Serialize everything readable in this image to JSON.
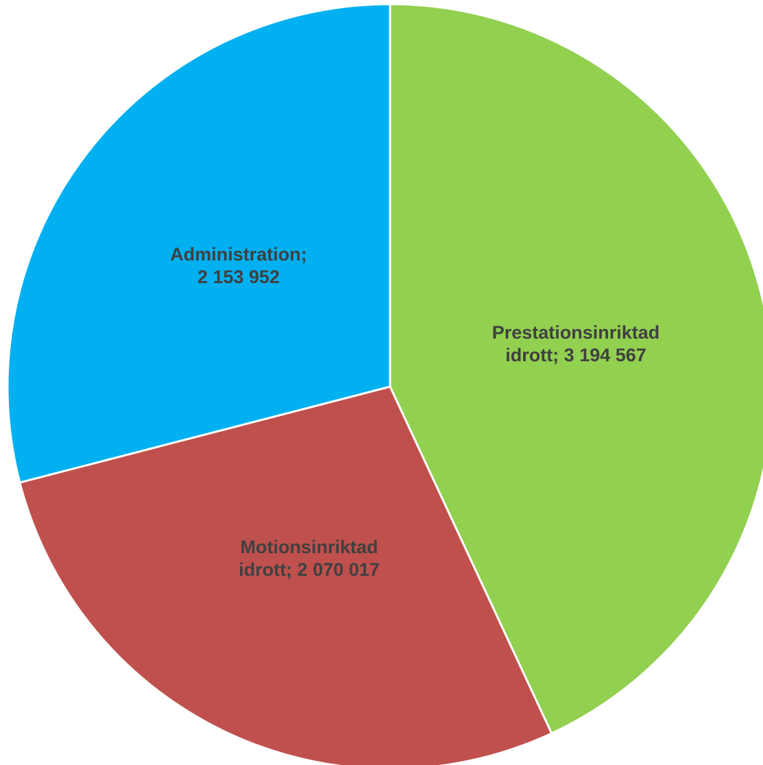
{
  "chart_data": {
    "type": "pie",
    "start_angle_deg": 0,
    "direction": "clockwise",
    "slices": [
      {
        "name": "Prestationsinriktad idrott",
        "value": 3194567,
        "color": "#92d050",
        "label_lines": [
          "Prestationsinriktad",
          "idrott; 3 194 567"
        ]
      },
      {
        "name": "Motionsinriktad idrott",
        "value": 2070017,
        "color": "#c0504d",
        "label_lines": [
          "Motionsinriktad",
          "idrott; 2 070 017"
        ]
      },
      {
        "name": "Administration",
        "value": 2153952,
        "color": "#00b0f0",
        "label_lines": [
          "Administration;",
          "2 153 952"
        ]
      }
    ],
    "legend": false
  }
}
